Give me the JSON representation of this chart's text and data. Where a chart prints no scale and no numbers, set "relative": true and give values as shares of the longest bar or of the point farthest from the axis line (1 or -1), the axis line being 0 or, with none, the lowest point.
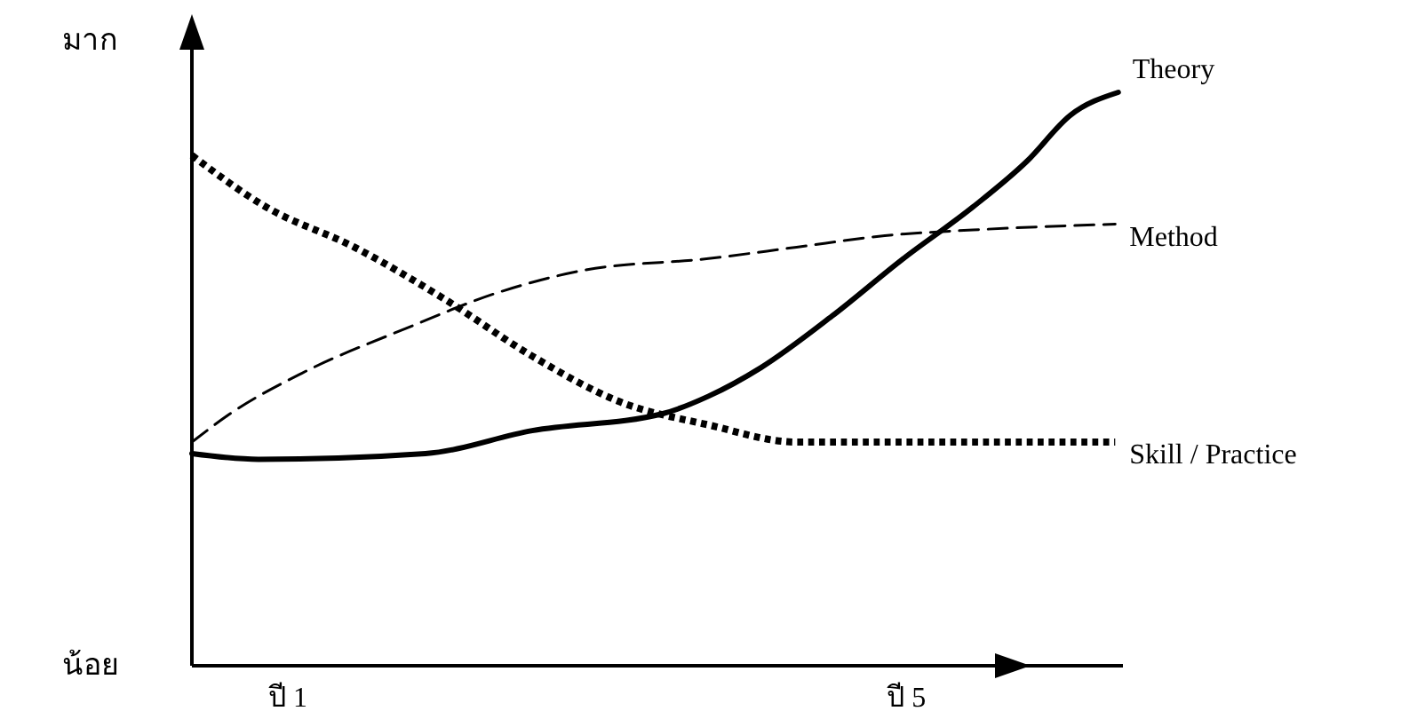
{
  "chart_data": {
    "type": "line",
    "relative": true,
    "legend": false,
    "x": [
      0.38,
      0.81,
      1.89,
      2.58,
      3.43,
      3.72,
      4.06,
      4.52,
      4.98,
      5.43,
      5.78,
      6.06,
      6.37
    ],
    "xlim": [
      0.38,
      6.4
    ],
    "xticks": [
      {
        "value": 1,
        "label": "ปี 1"
      },
      {
        "value": 5,
        "label": "ปี 5"
      }
    ],
    "series": [
      {
        "name": "Theory",
        "color": "#000000",
        "line_style": "solid",
        "values": [
          0.37,
          0.36,
          0.37,
          0.41,
          0.44,
          0.47,
          0.52,
          0.61,
          0.71,
          0.8,
          0.88,
          0.96,
          1
        ]
      },
      {
        "name": "Method",
        "color": "#000000",
        "line_style": "dashed",
        "x": [
          0.38,
          0.63,
          1.09,
          1.78,
          2.35,
          2.92,
          3.72,
          4.29,
          4.86,
          5.43,
          6.35
        ],
        "values": [
          0.39,
          0.44,
          0.51,
          0.59,
          0.65,
          0.69,
          0.71,
          0.73,
          0.75,
          0.76,
          0.77
        ]
      },
      {
        "name": "Skill / Practice",
        "color": "#000000",
        "line_style": "dotted",
        "x": [
          0.38,
          0.86,
          1.43,
          2.01,
          2.58,
          3.15,
          3.72,
          4.29,
          4.86,
          6.35
        ],
        "values": [
          0.89,
          0.8,
          0.73,
          0.64,
          0.54,
          0.46,
          0.42,
          0.39,
          0.39,
          0.39
        ]
      }
    ],
    "annotations": [
      "มาก",
      "น้อย"
    ]
  }
}
